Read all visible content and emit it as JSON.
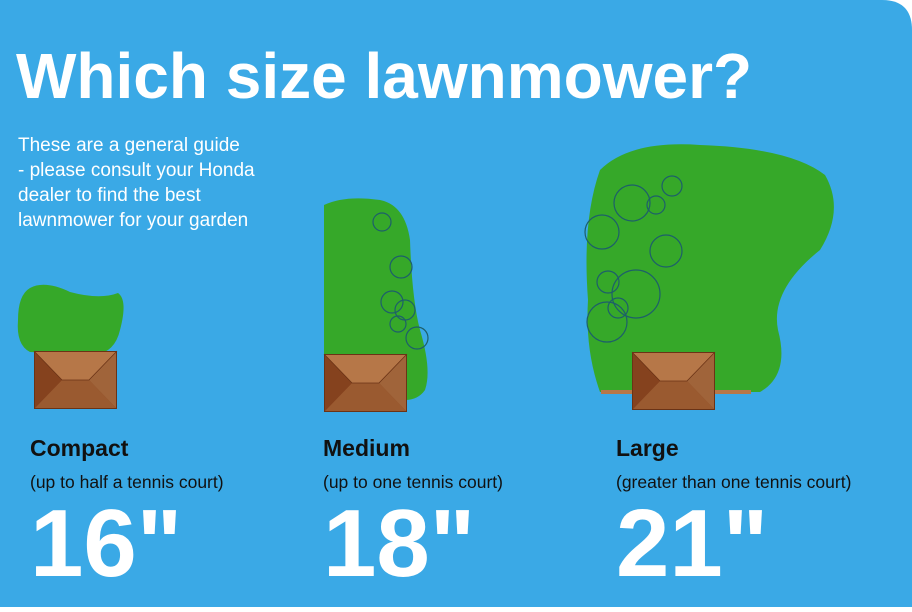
{
  "header": {
    "title": "Which size lawnmower?",
    "subtitle": [
      "These are a general guide",
      "- please consult your Honda",
      "dealer to find the best",
      "lawnmower for your garden"
    ]
  },
  "items": [
    {
      "name": "Compact",
      "description": "(up to half a tennis court)",
      "size": "16\""
    },
    {
      "name": "Medium",
      "description": "(up to one tennis court)",
      "size": "18\""
    },
    {
      "name": "Large",
      "description": "(greater than one tennis court)",
      "size": "21\""
    }
  ]
}
